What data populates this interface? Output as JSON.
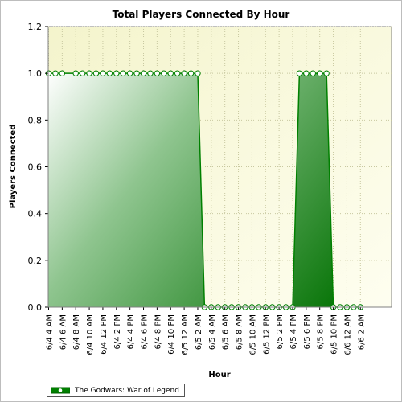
{
  "chart_data": {
    "type": "area",
    "title": "Total Players Connected By Hour",
    "xlabel": "Hour",
    "ylabel": "Players Connected",
    "ylim": [
      0,
      1.2
    ],
    "yticks": [
      "0.0",
      "0.2",
      "0.4",
      "0.6",
      "0.8",
      "1.0",
      "1.2"
    ],
    "x_ticks": [
      "6/4 4 AM",
      "6/4 6 AM",
      "6/4 8 AM",
      "6/4 10 AM",
      "6/4 12 PM",
      "6/4 2 PM",
      "6/4 4 PM",
      "6/4 6 PM",
      "6/4 8 PM",
      "6/4 10 PM",
      "6/5 12 AM",
      "6/5 2 AM",
      "6/5 4 AM",
      "6/5 6 AM",
      "6/5 8 AM",
      "6/5 10 AM",
      "6/5 12 PM",
      "6/5 2 PM",
      "6/5 4 PM",
      "6/5 6 PM",
      "6/5 8 PM",
      "6/5 10 PM",
      "6/6 12 AM",
      "6/6 2 AM"
    ],
    "x_hours_start": "6/4 4 AM",
    "legend_position": "bottom-left",
    "grid": true,
    "series": [
      {
        "name": "The Godwars: War of Legend",
        "color": "#008000",
        "points": [
          {
            "x": "6/4 4 AM",
            "y": 1
          },
          {
            "x": "6/4 5 AM",
            "y": 1
          },
          {
            "x": "6/4 6 AM",
            "y": 1
          },
          {
            "x": "6/4 8 AM",
            "y": 1
          },
          {
            "x": "6/4 9 AM",
            "y": 1
          },
          {
            "x": "6/4 10 AM",
            "y": 1
          },
          {
            "x": "6/4 11 AM",
            "y": 1
          },
          {
            "x": "6/4 12 PM",
            "y": 1
          },
          {
            "x": "6/4 1 PM",
            "y": 1
          },
          {
            "x": "6/4 2 PM",
            "y": 1
          },
          {
            "x": "6/4 3 PM",
            "y": 1
          },
          {
            "x": "6/4 4 PM",
            "y": 1
          },
          {
            "x": "6/4 5 PM",
            "y": 1
          },
          {
            "x": "6/4 6 PM",
            "y": 1
          },
          {
            "x": "6/4 7 PM",
            "y": 1
          },
          {
            "x": "6/4 8 PM",
            "y": 1
          },
          {
            "x": "6/4 9 PM",
            "y": 1
          },
          {
            "x": "6/4 10 PM",
            "y": 1
          },
          {
            "x": "6/4 11 PM",
            "y": 1
          },
          {
            "x": "6/5 12 AM",
            "y": 1
          },
          {
            "x": "6/5 1 AM",
            "y": 1
          },
          {
            "x": "6/5 2 AM",
            "y": 1
          },
          {
            "x": "6/5 3 AM",
            "y": 0
          },
          {
            "x": "6/5 4 AM",
            "y": 0
          },
          {
            "x": "6/5 5 AM",
            "y": 0
          },
          {
            "x": "6/5 6 AM",
            "y": 0
          },
          {
            "x": "6/5 7 AM",
            "y": 0
          },
          {
            "x": "6/5 8 AM",
            "y": 0
          },
          {
            "x": "6/5 9 AM",
            "y": 0
          },
          {
            "x": "6/5 10 AM",
            "y": 0
          },
          {
            "x": "6/5 11 AM",
            "y": 0
          },
          {
            "x": "6/5 12 PM",
            "y": 0
          },
          {
            "x": "6/5 1 PM",
            "y": 0
          },
          {
            "x": "6/5 2 PM",
            "y": 0
          },
          {
            "x": "6/5 3 PM",
            "y": 0
          },
          {
            "x": "6/5 4 PM",
            "y": 0
          },
          {
            "x": "6/5 5 PM",
            "y": 1
          },
          {
            "x": "6/5 6 PM",
            "y": 1
          },
          {
            "x": "6/5 7 PM",
            "y": 1
          },
          {
            "x": "6/5 8 PM",
            "y": 1
          },
          {
            "x": "6/5 9 PM",
            "y": 1
          },
          {
            "x": "6/5 10 PM",
            "y": 0
          },
          {
            "x": "6/5 11 PM",
            "y": 0
          },
          {
            "x": "6/6 12 AM",
            "y": 0
          },
          {
            "x": "6/6 1 AM",
            "y": 0
          },
          {
            "x": "6/6 2 AM",
            "y": 0
          }
        ]
      }
    ]
  }
}
